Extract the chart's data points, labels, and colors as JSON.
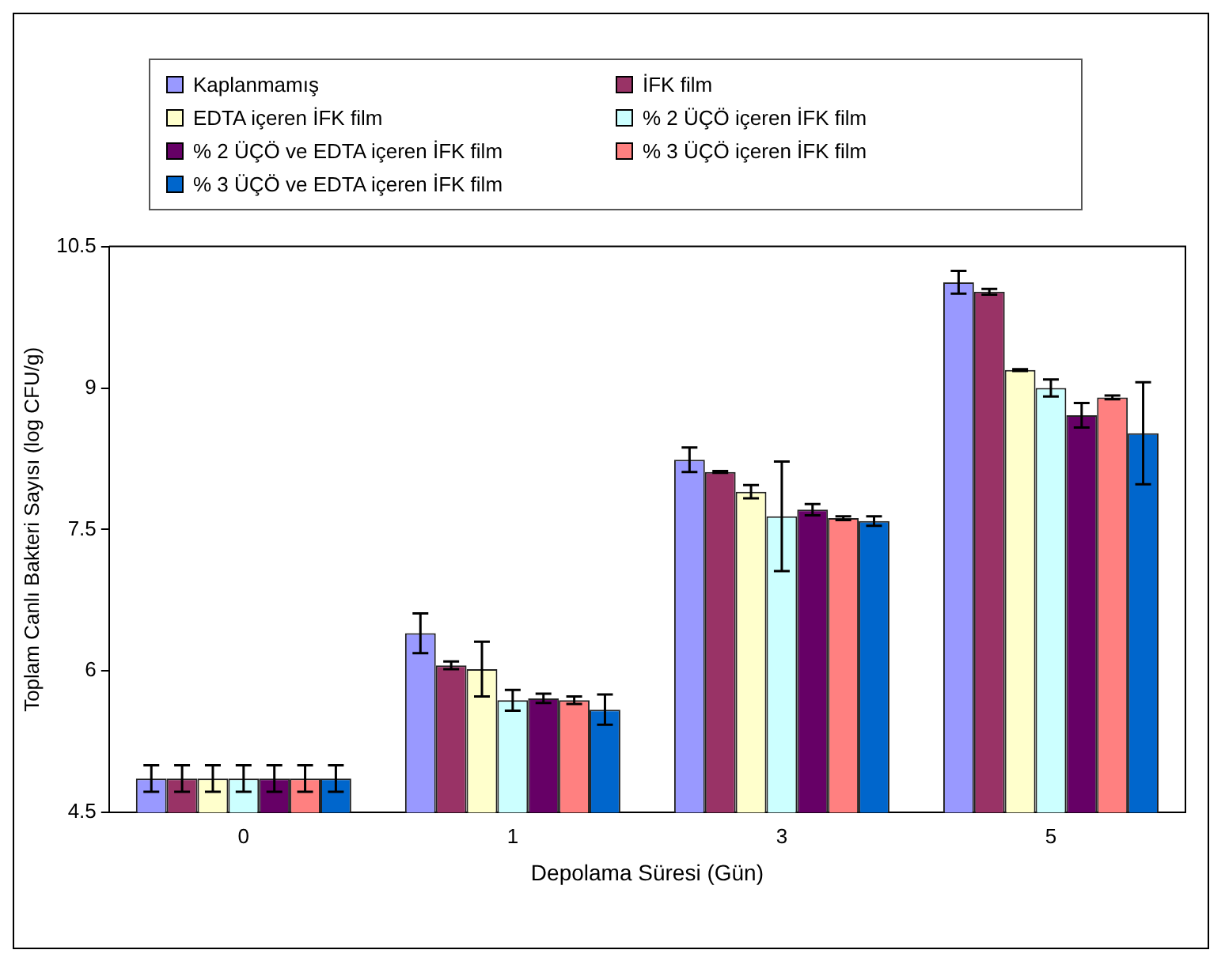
{
  "chart_data": {
    "type": "bar",
    "xlabel": "Depolama Süresi (Gün)",
    "ylabel": "Toplam Canlı Bakteri Sayısı (log CFU/g)",
    "categories": [
      "0",
      "1",
      "3",
      "5"
    ],
    "series": [
      {
        "name": "Kaplanmamış",
        "color": "#9999ff",
        "values": [
          4.86,
          6.4,
          8.24,
          10.12
        ],
        "errors": [
          0.14,
          0.21,
          0.13,
          0.12
        ]
      },
      {
        "name": "İFK film",
        "color": "#993366",
        "values": [
          4.86,
          6.06,
          8.11,
          10.02
        ],
        "errors": [
          0.14,
          0.04,
          0.01,
          0.03
        ]
      },
      {
        "name": "EDTA içeren İFK film",
        "color": "#ffffcc",
        "values": [
          4.86,
          6.02,
          7.9,
          9.19
        ],
        "errors": [
          0.14,
          0.29,
          0.07,
          0.01
        ]
      },
      {
        "name": "% 2 ÜÇÖ içeren İFK film",
        "color": "#ccffff",
        "values": [
          4.86,
          5.69,
          7.64,
          9.0
        ],
        "errors": [
          0.14,
          0.11,
          0.58,
          0.09
        ]
      },
      {
        "name": "% 2 ÜÇÖ ve EDTA içeren İFK film",
        "color": "#660066",
        "values": [
          4.86,
          5.71,
          7.71,
          8.71
        ],
        "errors": [
          0.14,
          0.05,
          0.06,
          0.13
        ]
      },
      {
        "name": "% 3 ÜÇÖ içeren İFK film",
        "color": "#ff8080",
        "values": [
          4.86,
          5.69,
          7.62,
          8.9
        ],
        "errors": [
          0.14,
          0.04,
          0.02,
          0.02
        ]
      },
      {
        "name": "% 3 ÜÇÖ ve EDTA içeren İFK film",
        "color": "#0066cc",
        "values": [
          4.86,
          5.59,
          7.59,
          8.52
        ],
        "errors": [
          0.14,
          0.16,
          0.05,
          0.54
        ]
      }
    ],
    "ylim": [
      4.5,
      10.5
    ],
    "yticks": [
      4.5,
      6,
      7.5,
      9,
      10.5
    ],
    "grid": false,
    "legend": "top"
  }
}
